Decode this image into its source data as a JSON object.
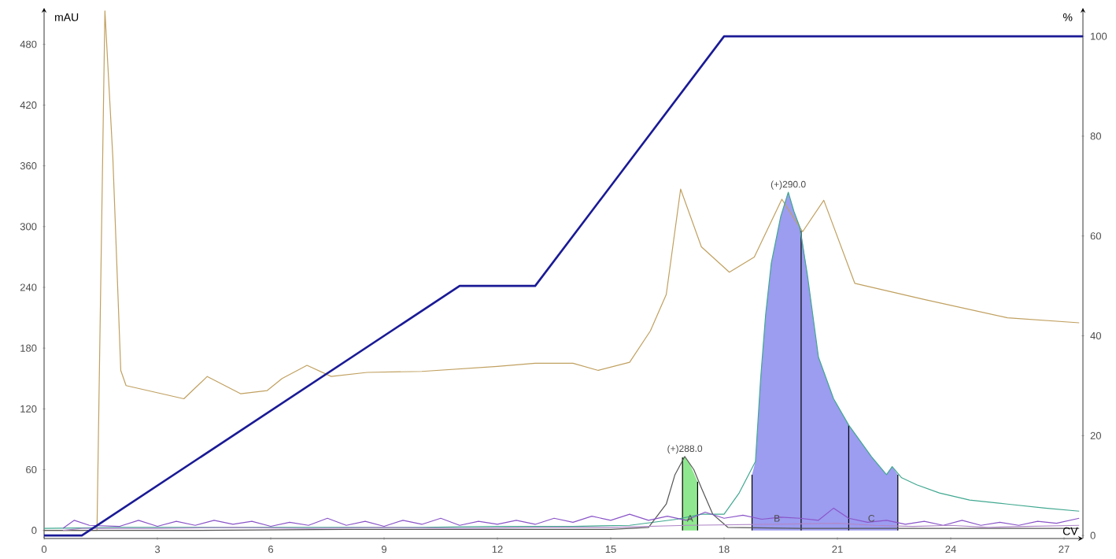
{
  "chart_data": {
    "type": "line",
    "xlabel": "CV",
    "ylabel": "mAU",
    "y2label": "%",
    "xlim": [
      0,
      27.5
    ],
    "xticks": [
      0,
      3,
      6,
      9,
      12,
      15,
      18,
      21,
      24,
      27
    ],
    "ylim": [
      -8,
      516
    ],
    "yticks": [
      0,
      60,
      120,
      180,
      240,
      300,
      360,
      420,
      480
    ],
    "y2lim": [
      -0.6,
      105.7
    ],
    "y2ticks": [
      0,
      20,
      40,
      60,
      80,
      100
    ],
    "grid": false,
    "legend": false,
    "marker": "none",
    "line_style": "solid",
    "series": [
      {
        "type": "area",
        "color": "#8fe88f",
        "x": [
          16.9,
          16.96,
          17.1,
          17.3
        ],
        "values": [
          72,
          73,
          65,
          48
        ]
      },
      {
        "type": "area",
        "color": "#9c9cf0",
        "x": [
          18.74,
          18.83,
          18.97,
          19.1,
          19.25,
          19.5,
          19.7,
          19.85,
          20.04
        ],
        "values": [
          55,
          68,
          151,
          213,
          264,
          310,
          334,
          315,
          296
        ]
      },
      {
        "type": "area",
        "color": "#9c9cf0",
        "x": [
          20.04,
          20.2,
          20.5,
          20.9,
          21.3
        ],
        "values": [
          296,
          254,
          171,
          130,
          104
        ]
      },
      {
        "type": "area",
        "color": "#9c9cf0",
        "x": [
          21.3,
          21.9,
          22.3,
          22.45,
          22.6
        ],
        "values": [
          104,
          73,
          55,
          63,
          55
        ]
      },
      {
        "color": "#000000",
        "x": [
          16.9,
          16.9
        ],
        "values": [
          0,
          72
        ]
      },
      {
        "color": "#000000",
        "x": [
          17.3,
          17.3
        ],
        "values": [
          0,
          48
        ]
      },
      {
        "color": "#000000",
        "x": [
          18.74,
          18.74
        ],
        "values": [
          0,
          55
        ]
      },
      {
        "color": "#000000",
        "x": [
          20.04,
          20.04
        ],
        "values": [
          0,
          296
        ]
      },
      {
        "color": "#000000",
        "x": [
          21.3,
          21.3
        ],
        "values": [
          0,
          104
        ]
      },
      {
        "color": "#000000",
        "x": [
          22.6,
          22.6
        ],
        "values": [
          0,
          55
        ]
      },
      {
        "color": "#c0a060",
        "x": [
          0,
          1.4,
          1.61,
          1.82,
          2.03,
          2.17,
          3.7,
          4.32,
          5.2,
          5.9,
          6.3,
          6.96,
          7.6,
          8.55,
          10,
          12,
          13,
          14,
          14.67,
          15.5,
          16.05,
          16.47,
          16.85,
          17.4,
          18.14,
          18.8,
          19.53,
          20.08,
          20.64,
          21.46,
          23.3,
          25.5,
          27.4
        ],
        "values": [
          0,
          0,
          513,
          368,
          158,
          143,
          130,
          152,
          135,
          138,
          150,
          163,
          152,
          156,
          157,
          162,
          165,
          165,
          158,
          166,
          197,
          233,
          337,
          280,
          255,
          270,
          327,
          295,
          326,
          244,
          228,
          210,
          205
        ]
      },
      {
        "color": "#40a890",
        "x": [
          0,
          2,
          4,
          6,
          8,
          10,
          12,
          14,
          15.5,
          16.75,
          17.4,
          18,
          18.4,
          18.83,
          18.97,
          19.1,
          19.25,
          19.5,
          19.7,
          19.85,
          20.0,
          20.2,
          20.5,
          20.9,
          21.3,
          21.9,
          22.3,
          22.45,
          22.7,
          23.1,
          23.7,
          24.5,
          25.5,
          26.5,
          27.4
        ],
        "values": [
          2,
          3,
          3,
          3,
          3,
          3,
          4,
          4,
          5,
          11,
          16,
          16,
          37,
          68,
          151,
          213,
          264,
          310,
          334,
          315,
          300,
          254,
          171,
          130,
          104,
          73,
          55,
          63,
          52,
          45,
          37,
          30,
          26,
          22,
          19
        ]
      },
      {
        "color": "#555555",
        "x": [
          0,
          4,
          8,
          12,
          15,
          16,
          16.47,
          16.7,
          16.96,
          17.2,
          17.4,
          17.7,
          18.1,
          20,
          24,
          27.4
        ],
        "values": [
          0,
          0,
          1,
          1,
          1,
          3,
          26,
          55,
          73,
          60,
          42,
          16,
          3,
          2,
          2,
          2
        ]
      },
      {
        "color": "#8a55c8",
        "x": [
          0.5,
          0.8,
          1.2,
          2,
          2.5,
          3,
          3.5,
          4,
          4.5,
          5,
          5.5,
          6,
          6.5,
          7,
          7.5,
          8,
          8.5,
          9,
          9.5,
          10,
          10.5,
          11,
          11.5,
          12,
          12.5,
          13,
          13.5,
          14,
          14.5,
          15,
          15.5,
          16,
          16.5,
          17,
          17.5,
          18,
          18.5,
          19,
          19.5,
          20,
          20.5,
          20.9,
          21.3,
          21.8,
          22.3,
          22.8,
          23.3,
          23.8,
          24.3,
          24.8,
          25.3,
          25.8,
          26.3,
          26.8,
          27.4
        ],
        "values": [
          2,
          10,
          5,
          4,
          10,
          4,
          9,
          5,
          10,
          6,
          9,
          4,
          8,
          5,
          12,
          5,
          9,
          4,
          10,
          6,
          12,
          5,
          9,
          6,
          10,
          6,
          12,
          8,
          14,
          10,
          16,
          10,
          14,
          10,
          18,
          12,
          15,
          11,
          13,
          12,
          10,
          22,
          12,
          8,
          10,
          6,
          9,
          5,
          10,
          5,
          8,
          5,
          9,
          7,
          12
        ]
      },
      {
        "color": "#b088c8",
        "x": [
          0.5,
          1,
          3,
          5,
          7,
          9,
          11,
          13,
          15,
          17,
          19,
          21,
          22,
          23,
          24,
          25,
          26,
          27.4
        ],
        "values": [
          0,
          2,
          2,
          3,
          2,
          3,
          2,
          3,
          3,
          5,
          6,
          7,
          5,
          4,
          5,
          3,
          4,
          5
        ]
      },
      {
        "axis": "y2",
        "color": "#1a1a96",
        "x": [
          0,
          1,
          11,
          13,
          18,
          27.5
        ],
        "values": [
          0,
          0,
          50,
          50,
          100,
          100
        ]
      }
    ],
    "annotations": [
      {
        "text": "(+)290.0",
        "x": 19.7,
        "y": 334
      },
      {
        "text": "(+)288.0",
        "x": 16.96,
        "y": 73
      },
      {
        "text": "A",
        "x": 17.1,
        "y": 6
      },
      {
        "text": "B",
        "x": 19.4,
        "y": 6
      },
      {
        "text": "C",
        "x": 21.9,
        "y": 6
      }
    ]
  }
}
